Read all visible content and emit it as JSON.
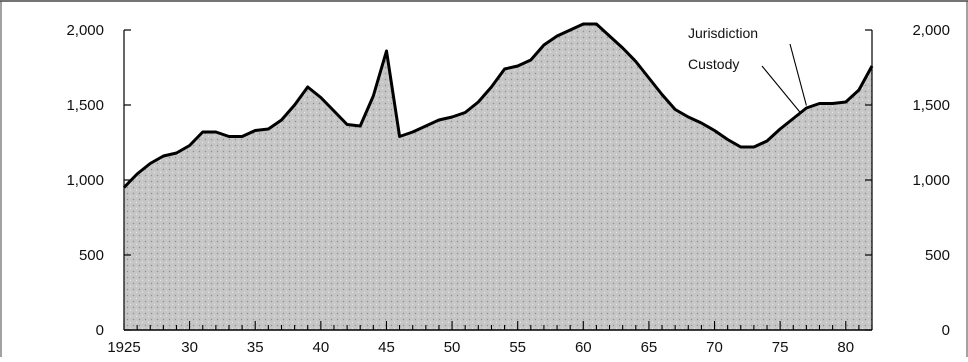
{
  "chart_data": {
    "type": "area",
    "title": "",
    "xlabel": "",
    "ylabel": "",
    "xlim": [
      1925,
      1982
    ],
    "ylim": [
      0,
      2000
    ],
    "x_ticks": [
      1925,
      1930,
      1935,
      1940,
      1945,
      1950,
      1955,
      1960,
      1965,
      1970,
      1975,
      1980
    ],
    "x_tick_labels": [
      "1925",
      "30",
      "35",
      "40",
      "45",
      "50",
      "55",
      "60",
      "65",
      "70",
      "75",
      "80"
    ],
    "y_ticks": [
      0,
      500,
      1000,
      1500,
      2000
    ],
    "y_tick_labels": [
      "0",
      "500",
      "1,000",
      "1,500",
      "2,000"
    ],
    "right_axis": true,
    "grid": false,
    "fill_color": "#c8c8c8",
    "line_color": "#000000",
    "series": [
      {
        "x": [
          1925,
          1926,
          1927,
          1928,
          1929,
          1930,
          1931,
          1932,
          1933,
          1934,
          1935,
          1936,
          1937,
          1938,
          1939,
          1940,
          1941,
          1942,
          1943,
          1944,
          1945,
          1946,
          1947,
          1948,
          1949,
          1950,
          1951,
          1952,
          1953,
          1954,
          1955,
          1956,
          1957,
          1958,
          1959,
          1960,
          1961,
          1962,
          1963,
          1964,
          1965,
          1966,
          1967,
          1968,
          1969,
          1970,
          1971,
          1972,
          1973,
          1974,
          1975,
          1976,
          1977,
          1978,
          1979,
          1980,
          1981,
          1982
        ],
        "values": [
          950,
          1040,
          1110,
          1160,
          1180,
          1230,
          1320,
          1320,
          1290,
          1290,
          1330,
          1340,
          1400,
          1500,
          1620,
          1550,
          1460,
          1370,
          1360,
          1560,
          1860,
          1290,
          1320,
          1360,
          1400,
          1420,
          1450,
          1520,
          1620,
          1740,
          1760,
          1800,
          1900,
          1960,
          2000,
          2040,
          2040,
          1960,
          1880,
          1790,
          1680,
          1570,
          1470,
          1420,
          1380,
          1330,
          1270,
          1220,
          1220,
          1260,
          1340,
          1410,
          1480,
          1510,
          1510,
          1520,
          1600,
          1760
        ]
      }
    ],
    "annotations": [
      {
        "text": "Jurisdiction",
        "x": 1977,
        "y": 1510
      },
      {
        "text": "Custody",
        "x": 1976.5,
        "y": 1480
      }
    ]
  }
}
